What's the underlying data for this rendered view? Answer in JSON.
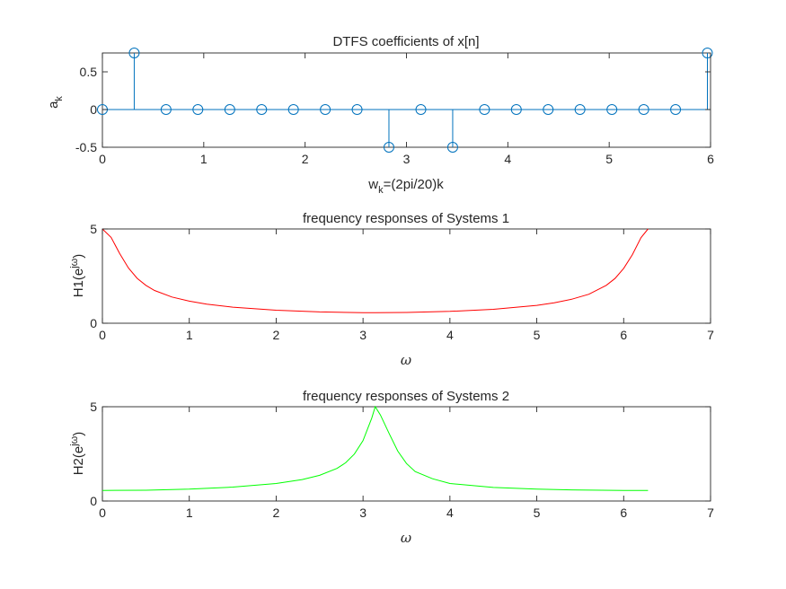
{
  "chart_data": [
    {
      "type": "stem",
      "title": "DTFS coefficients of x[n]",
      "ylabel_main": "a",
      "ylabel_sub": "k",
      "xlabel_main": "w",
      "xlabel_sub": "k",
      "xlabel_rest": "=(2pi/20)k",
      "xlim": [
        0,
        6
      ],
      "ylim": [
        -0.5,
        0.75
      ],
      "xticks": [
        0,
        1,
        2,
        3,
        4,
        5,
        6
      ],
      "yticks": [
        -0.5,
        0,
        0.5
      ],
      "ytick_labels": [
        "-0.5",
        "0",
        "0.5"
      ],
      "color": "#0072BD",
      "x": [
        0,
        0.314,
        0.628,
        0.942,
        1.257,
        1.571,
        1.885,
        2.199,
        2.513,
        2.827,
        3.142,
        3.456,
        3.77,
        4.084,
        4.398,
        4.712,
        5.027,
        5.341,
        5.655,
        5.969
      ],
      "values": [
        0,
        0.75,
        0,
        0,
        0,
        0,
        0,
        0,
        0,
        -0.5,
        0,
        -0.5,
        0,
        0,
        0,
        0,
        0,
        0,
        0,
        0.75
      ]
    },
    {
      "type": "line",
      "title": "frequency responses of Systems 1",
      "ylabel_main": "H1(e",
      "ylabel_sup": "jω",
      "ylabel_end": ")",
      "xlabel": "ω",
      "xlim": [
        0,
        7
      ],
      "ylim": [
        0,
        5
      ],
      "xticks": [
        0,
        1,
        2,
        3,
        4,
        5,
        6,
        7
      ],
      "yticks": [
        0,
        5
      ],
      "color": "#FF0000",
      "function": "1/|1 - 0.8 e^{-jω}|",
      "x": [
        0,
        0.1,
        0.2,
        0.3,
        0.4,
        0.5,
        0.6,
        0.8,
        1.0,
        1.2,
        1.5,
        2.0,
        2.5,
        3.0,
        3.14,
        3.5,
        4.0,
        4.5,
        5.0,
        5.2,
        5.4,
        5.6,
        5.8,
        5.9,
        6.0,
        6.1,
        6.2,
        6.28
      ],
      "values": [
        5.0,
        4.55,
        3.69,
        2.93,
        2.38,
        2.01,
        1.74,
        1.39,
        1.17,
        1.01,
        0.85,
        0.69,
        0.6,
        0.56,
        0.56,
        0.57,
        0.63,
        0.74,
        0.95,
        1.08,
        1.27,
        1.54,
        2.01,
        2.37,
        2.91,
        3.64,
        4.54,
        5.0
      ]
    },
    {
      "type": "line",
      "title": "frequency responses of Systems 2",
      "ylabel_main": "H2(e",
      "ylabel_sup": "jω",
      "ylabel_end": ")",
      "xlabel": "ω",
      "xlim": [
        0,
        7
      ],
      "ylim": [
        0,
        5
      ],
      "xticks": [
        0,
        1,
        2,
        3,
        4,
        5,
        6,
        7
      ],
      "yticks": [
        0,
        5
      ],
      "color": "#00FF00",
      "function": "1/|1 + 0.8 e^{-jω}|",
      "x": [
        0,
        0.5,
        1.0,
        1.5,
        2.0,
        2.3,
        2.5,
        2.7,
        2.8,
        2.9,
        3.0,
        3.1,
        3.14,
        3.2,
        3.3,
        3.4,
        3.5,
        3.6,
        3.8,
        4.0,
        4.5,
        5.0,
        5.5,
        6.0,
        6.28
      ],
      "values": [
        0.56,
        0.57,
        0.63,
        0.74,
        0.93,
        1.14,
        1.36,
        1.73,
        2.03,
        2.49,
        3.2,
        4.39,
        5.0,
        4.56,
        3.58,
        2.65,
        1.99,
        1.56,
        1.18,
        0.93,
        0.72,
        0.63,
        0.58,
        0.56,
        0.56
      ]
    }
  ]
}
